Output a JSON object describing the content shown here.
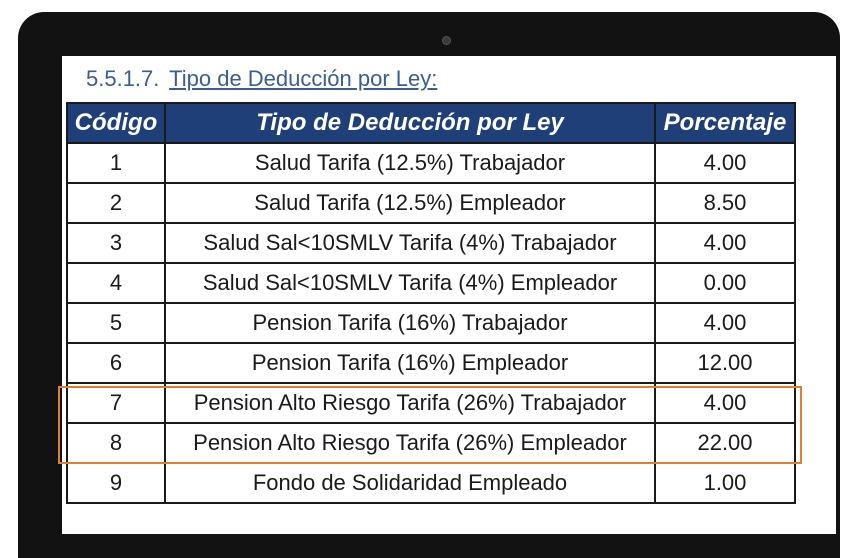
{
  "section": {
    "number": "5.5.1.7.",
    "title": "Tipo de Deducción por Ley:"
  },
  "table": {
    "headers": [
      "Código",
      "Tipo de Deducción por Ley",
      "Porcentaje"
    ],
    "rows": [
      {
        "code": "1",
        "type": "Salud Tarifa (12.5%) Trabajador",
        "percent": "4.00"
      },
      {
        "code": "2",
        "type": "Salud Tarifa (12.5%) Empleador",
        "percent": "8.50"
      },
      {
        "code": "3",
        "type": "Salud Sal<10SMLV Tarifa (4%) Trabajador",
        "percent": "4.00"
      },
      {
        "code": "4",
        "type": "Salud Sal<10SMLV Tarifa (4%) Empleador",
        "percent": "0.00"
      },
      {
        "code": "5",
        "type": "Pension Tarifa (16%) Trabajador",
        "percent": "4.00"
      },
      {
        "code": "6",
        "type": "Pension Tarifa (16%) Empleador",
        "percent": "12.00"
      },
      {
        "code": "7",
        "type": "Pension Alto Riesgo Tarifa (26%) Trabajador",
        "percent": "4.00"
      },
      {
        "code": "8",
        "type": "Pension Alto Riesgo Tarifa (26%) Empleador",
        "percent": "22.00"
      },
      {
        "code": "9",
        "type": "Fondo de Solidaridad Empleado",
        "percent": "1.00"
      }
    ]
  },
  "colors": {
    "header_bg": "#1f3f78",
    "heading_text": "#3b5d8f",
    "highlight_border": "#e07f2e",
    "device_frame": "#121212"
  }
}
